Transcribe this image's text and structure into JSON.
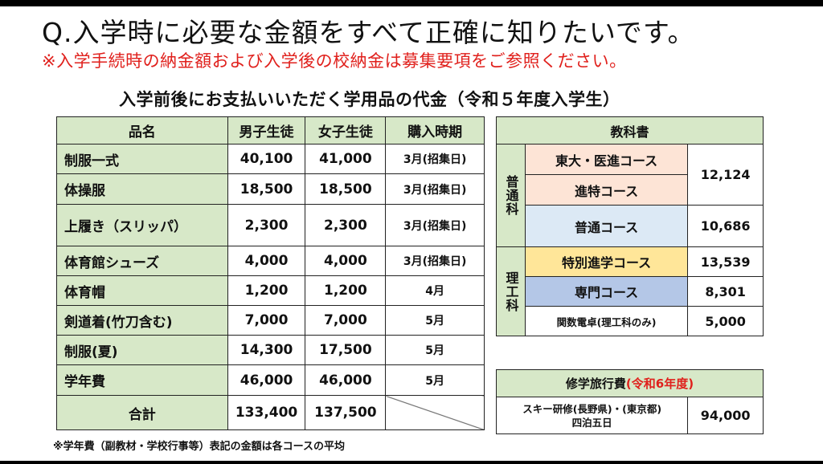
{
  "header": {
    "question": "Q.入学時に必要な金額をすべて正確に知りたいです。",
    "note": "※入学手続時の納金額および入学後の校納金は募集要項をご参照ください。",
    "subtitle": "入学前後にお支払いいただく学用品の代金（令和５年度入学生）"
  },
  "supplies": {
    "columns": [
      "品名",
      "男子生徒",
      "女子生徒",
      "購入時期"
    ],
    "rows": [
      {
        "item": "制服一式",
        "male": "40,100",
        "female": "41,000",
        "period": "3月(招集日)"
      },
      {
        "item": "体操服",
        "male": "18,500",
        "female": "18,500",
        "period": "3月(招集日)"
      },
      {
        "item": "上履き（スリッパ）",
        "male": "2,300",
        "female": "2,300",
        "period": "3月(招集日)"
      },
      {
        "item": "体育館シューズ",
        "male": "4,000",
        "female": "4,000",
        "period": "3月(招集日)"
      },
      {
        "item": "体育帽",
        "male": "1,200",
        "female": "1,200",
        "period": "4月"
      },
      {
        "item": "剣道着(竹刀含む)",
        "male": "7,000",
        "female": "7,000",
        "period": "5月"
      },
      {
        "item": "制服(夏)",
        "male": "14,300",
        "female": "17,500",
        "period": "5月"
      },
      {
        "item": "学年費",
        "male": "46,000",
        "female": "46,000",
        "period": "5月"
      }
    ],
    "total": {
      "label": "合計",
      "male": "133,400",
      "female": "137,500"
    }
  },
  "textbooks": {
    "header": "教科書",
    "general": {
      "dept": "普通科",
      "courses": {
        "todai": "東大・医進コース",
        "shintoku": "進特コース",
        "shared_price": "12,124",
        "futsu": "普通コース",
        "futsu_price": "10,686"
      }
    },
    "science": {
      "dept": "理工科",
      "courses": {
        "tokubetsu": "特別進学コース",
        "tokubetsu_price": "13,539",
        "senmon": "専門コース",
        "senmon_price": "8,301",
        "calculator": "関数電卓(理工科のみ)",
        "calculator_price": "5,000"
      }
    }
  },
  "trip": {
    "header_main": "修学旅行費",
    "header_note": "(令和6年度)",
    "description_line1": "スキー研修(長野県)・(東京都)",
    "description_line2": "四泊五日",
    "price": "94,000"
  },
  "footnote": "※学年費（副教材・学校行事等）表記の金額は各コースの平均",
  "colors": {
    "header_green": "#d7e8c8",
    "peach": "#fde4d6",
    "light_blue": "#dce9f5",
    "yellow": "#ffe699",
    "steel_blue": "#b4c7e7",
    "red": "#e0201c"
  }
}
